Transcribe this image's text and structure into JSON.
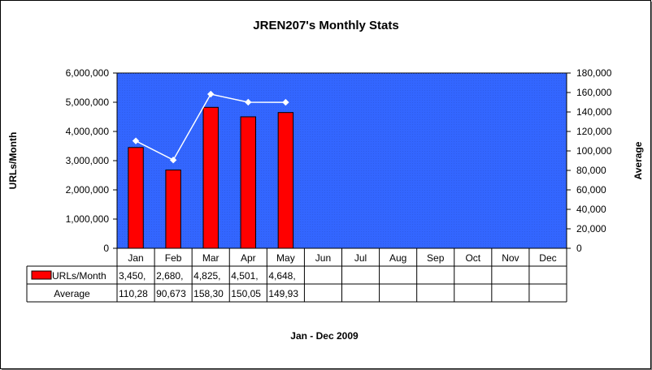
{
  "chart_data": {
    "type": "bar",
    "title": "JREN207's Monthly Stats",
    "xlabel": "Jan - Dec 2009",
    "ylabel": "URLs/Month",
    "y2label": "Average",
    "categories": [
      "Jan",
      "Feb",
      "Mar",
      "Apr",
      "May",
      "Jun",
      "Jul",
      "Aug",
      "Sep",
      "Oct",
      "Nov",
      "Dec"
    ],
    "ylim": [
      0,
      6000000
    ],
    "y2lim": [
      0,
      180000
    ],
    "y_ticks": [
      "0",
      "1,000,000",
      "2,000,000",
      "3,000,000",
      "4,000,000",
      "5,000,000",
      "6,000,000"
    ],
    "y2_ticks": [
      "0",
      "20,000",
      "40,000",
      "60,000",
      "80,000",
      "100,000",
      "120,000",
      "140,000",
      "160,000",
      "180,000"
    ],
    "series": [
      {
        "name": "URLs/Month",
        "kind": "bar",
        "axis": "left",
        "color": "#ff0000",
        "values": [
          3450000,
          2680000,
          4825000,
          4501000,
          4648000,
          null,
          null,
          null,
          null,
          null,
          null,
          null
        ],
        "table_labels": [
          "3,450,",
          "2,680,",
          "4,825,",
          "4,501,",
          "4,648,",
          "",
          "",
          "",
          "",
          "",
          "",
          ""
        ]
      },
      {
        "name": "Average",
        "kind": "line",
        "axis": "right",
        "color": "#ffffff",
        "values": [
          110280,
          90673,
          158300,
          150050,
          149930,
          null,
          null,
          null,
          null,
          null,
          null,
          null
        ],
        "table_labels": [
          "110,28",
          "90,673",
          "158,30",
          "150,05",
          "149,93",
          "",
          "",
          "",
          "",
          "",
          "",
          ""
        ]
      }
    ],
    "plot_background": "#3366ff",
    "legend": "data-table"
  }
}
